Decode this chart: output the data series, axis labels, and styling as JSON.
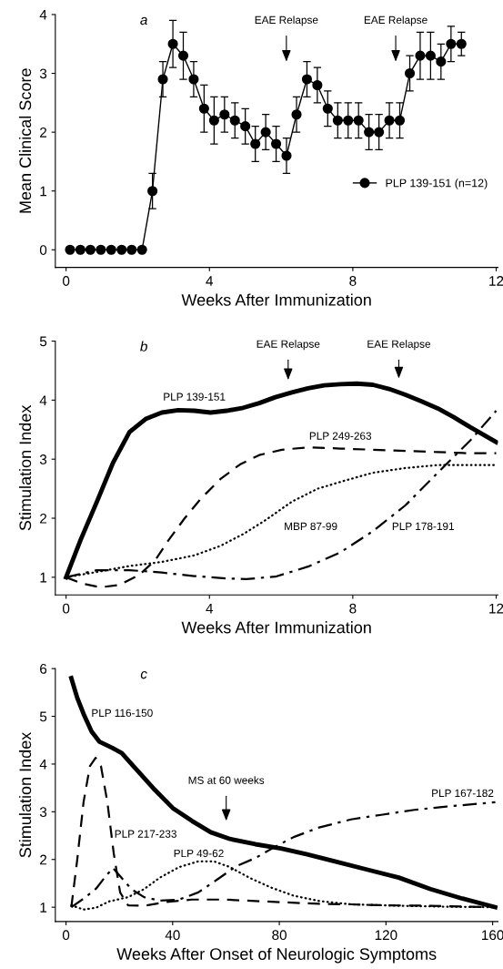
{
  "chart_data": [
    {
      "type": "line",
      "xlabel": "Weeks After Immunization",
      "ylabel": "Mean Clinical Score",
      "x": [
        0.11,
        0.4,
        0.68,
        0.97,
        1.26,
        1.55,
        1.83,
        2.12,
        2.41,
        2.7,
        2.98,
        3.27,
        3.56,
        3.85,
        4.13,
        4.42,
        4.71,
        5.0,
        5.28,
        5.57,
        5.86,
        6.15,
        6.43,
        6.72,
        7.01,
        7.3,
        7.58,
        7.87,
        8.16,
        8.45,
        8.73,
        9.02,
        9.31,
        9.59,
        9.88,
        10.17,
        10.46,
        10.74,
        11.03
      ],
      "series": [
        {
          "name": "PLP 139-151 (n=12)",
          "color": "#000000",
          "line_style": "solid",
          "values": [
            0,
            0,
            0,
            0,
            0,
            0,
            0,
            0,
            1.0,
            2.9,
            3.5,
            3.3,
            2.9,
            2.4,
            2.2,
            2.3,
            2.2,
            2.1,
            1.8,
            2.0,
            1.8,
            1.6,
            2.3,
            2.9,
            2.8,
            2.4,
            2.2,
            2.2,
            2.2,
            2.0,
            2.0,
            2.2,
            2.2,
            3.0,
            3.3,
            3.3,
            3.2,
            3.5,
            3.5
          ],
          "errors": [
            null,
            null,
            null,
            null,
            null,
            null,
            null,
            null,
            0.3,
            0.3,
            0.4,
            0.4,
            0.3,
            0.4,
            0.4,
            0.3,
            0.3,
            0.3,
            0.3,
            0.3,
            0.3,
            0.3,
            0.3,
            0.3,
            0.3,
            0.3,
            0.3,
            0.3,
            0.3,
            0.3,
            0.3,
            0.3,
            0.3,
            0.3,
            0.4,
            0.4,
            0.3,
            0.3,
            0.2
          ]
        }
      ],
      "marker": "circle",
      "legend": "right",
      "xlim": [
        -0.3,
        12.05
      ],
      "xticks": [
        0,
        4,
        8,
        12
      ],
      "ylim": [
        -0.3,
        4
      ],
      "yticks": [
        0,
        1,
        2,
        3,
        4
      ],
      "annotations": [
        "a",
        "EAE Relapse",
        "EAE Relapse"
      ]
    },
    {
      "type": "line",
      "xlabel": "Weeks After Immunization",
      "ylabel": "Stimulation Index",
      "series": [
        {
          "name": "PLP 139-151",
          "color": "#000000",
          "line_style": "solid",
          "x": [
            0,
            0.41,
            0.86,
            1.31,
            1.77,
            2.22,
            2.67,
            3.13,
            3.58,
            4.03,
            4.48,
            4.94,
            5.39,
            5.84,
            6.3,
            6.75,
            7.2,
            7.65,
            8.11,
            8.56,
            9.01,
            9.47,
            9.92,
            10.37,
            10.82,
            11.28,
            12
          ],
          "values": [
            1.0,
            1.64,
            2.28,
            2.94,
            3.46,
            3.68,
            3.79,
            3.83,
            3.82,
            3.79,
            3.82,
            3.87,
            3.95,
            4.05,
            4.13,
            4.2,
            4.25,
            4.27,
            4.28,
            4.26,
            4.19,
            4.09,
            3.98,
            3.86,
            3.71,
            3.54,
            3.29
          ]
        },
        {
          "name": "PLP 249-263",
          "color": "#000000",
          "line_style": "dashed",
          "x": [
            0,
            0.41,
            0.95,
            1.49,
            2.04,
            2.49,
            2.85,
            3.31,
            3.76,
            4.3,
            4.85,
            5.39,
            6.02,
            6.75,
            7.65,
            8.56,
            9.47,
            10.37,
            11.28,
            12
          ],
          "values": [
            1.0,
            0.9,
            0.83,
            0.87,
            1.04,
            1.29,
            1.62,
            2.0,
            2.33,
            2.66,
            2.91,
            3.07,
            3.16,
            3.2,
            3.18,
            3.16,
            3.14,
            3.12,
            3.1,
            3.1
          ]
        },
        {
          "name": "MBP 87-99",
          "color": "#000000",
          "line_style": "dotted",
          "x": [
            0,
            0.86,
            1.77,
            2.67,
            3.58,
            4.3,
            4.94,
            5.57,
            6.3,
            7.02,
            7.74,
            8.56,
            9.47,
            10.37,
            11.28,
            12
          ],
          "values": [
            1.0,
            1.09,
            1.19,
            1.26,
            1.37,
            1.53,
            1.73,
            1.97,
            2.28,
            2.5,
            2.63,
            2.77,
            2.85,
            2.9,
            2.9,
            2.9
          ]
        },
        {
          "name": "PLP 178-191",
          "color": "#000000",
          "line_style": "dashdot",
          "x": [
            0,
            0.86,
            1.77,
            2.67,
            3.58,
            4.48,
            5.03,
            5.84,
            6.75,
            7.65,
            8.56,
            9.47,
            10.37,
            11.28,
            12
          ],
          "values": [
            1.0,
            1.12,
            1.12,
            1.08,
            1.02,
            0.98,
            0.97,
            1.01,
            1.18,
            1.42,
            1.78,
            2.22,
            2.77,
            3.32,
            3.82
          ]
        }
      ],
      "marker": "none",
      "xlim": [
        -0.3,
        12.05
      ],
      "xticks": [
        0,
        4,
        8,
        12
      ],
      "ylim": [
        0.7,
        5
      ],
      "yticks": [
        1,
        2,
        3,
        4,
        5
      ],
      "annotations": [
        "b",
        "EAE Relapse",
        "EAE Relapse"
      ]
    },
    {
      "type": "line",
      "xlabel": "Weeks After Onset of Neurologic Symptoms",
      "ylabel": "Stimulation Index",
      "series": [
        {
          "name": "PLP 116-150",
          "color": "#000000",
          "line_style": "solid",
          "x": [
            2,
            4.2,
            6.6,
            9.6,
            12.5,
            17.3,
            20.9,
            25.7,
            32.8,
            40,
            47.2,
            54.3,
            61.5,
            71,
            80.6,
            90.1,
            100.9,
            112.8,
            124.8,
            136.7,
            148.7,
            161
          ],
          "values": [
            5.8,
            5.39,
            5.05,
            4.68,
            4.47,
            4.34,
            4.23,
            3.93,
            3.49,
            3.08,
            2.81,
            2.57,
            2.43,
            2.32,
            2.23,
            2.11,
            1.96,
            1.79,
            1.62,
            1.38,
            1.18,
            1.0
          ]
        },
        {
          "name": "PLP 217-233",
          "color": "#000000",
          "line_style": "dashed",
          "x": [
            2,
            4.2,
            6.6,
            9,
            11.1,
            13.1,
            15.5,
            17.9,
            20.3,
            23.3,
            29.3,
            37.6,
            47.2,
            59.1,
            71,
            83,
            94.9,
            106.9,
            118.8,
            136.7,
            161
          ],
          "values": [
            1.0,
            1.99,
            3.21,
            3.96,
            4.13,
            3.96,
            3.21,
            2.13,
            1.31,
            1.04,
            1.03,
            1.11,
            1.16,
            1.16,
            1.13,
            1.1,
            1.07,
            1.06,
            1.04,
            1.03,
            1.0
          ]
        },
        {
          "name": "PLP 49-62",
          "color": "#000000",
          "line_style": "dotted",
          "x": [
            2,
            6.6,
            11.3,
            16.1,
            23.3,
            29.3,
            35.2,
            42.4,
            49.6,
            55.5,
            61.5,
            68.7,
            77,
            85.4,
            94.9,
            106.9,
            124.8,
            142.7,
            161
          ],
          "values": [
            1.04,
            0.95,
            0.99,
            1.12,
            1.21,
            1.38,
            1.62,
            1.84,
            1.96,
            1.96,
            1.84,
            1.62,
            1.41,
            1.24,
            1.13,
            1.06,
            1.03,
            1.01,
            1.0
          ]
        },
        {
          "name": "PLP 167-182",
          "color": "#000000",
          "line_style": "dashdot",
          "x": [
            2,
            6.6,
            11.3,
            14.9,
            17.6,
            20.3,
            24.5,
            29.3,
            35.2,
            42.4,
            49.6,
            56.7,
            63.9,
            71,
            78.2,
            85.4,
            94.9,
            106.9,
            118.8,
            130.7,
            142.7,
            161
          ],
          "values": [
            1.0,
            1.18,
            1.39,
            1.65,
            1.82,
            1.65,
            1.38,
            1.21,
            1.14,
            1.16,
            1.31,
            1.58,
            1.86,
            2.03,
            2.26,
            2.47,
            2.67,
            2.84,
            2.94,
            3.04,
            3.11,
            3.2
          ]
        }
      ],
      "marker": "none",
      "xlim": [
        -4,
        162
      ],
      "xticks": [
        0,
        40,
        80,
        120,
        160
      ],
      "ylim": [
        0.7,
        6
      ],
      "yticks": [
        1,
        2,
        3,
        4,
        5,
        6
      ],
      "annotations": [
        "c",
        "MS at 60 weeks"
      ]
    }
  ]
}
